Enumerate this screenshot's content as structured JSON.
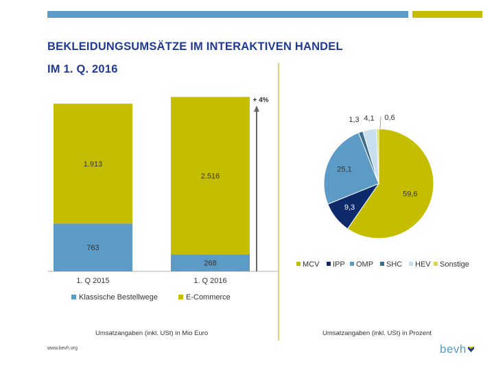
{
  "title": {
    "line1": "BEKLEIDUNGSUMSÄTZE IM INTERAKTIVEN HANDEL",
    "line2": "IM 1. Q. 2016"
  },
  "colors": {
    "accent_blue": "#5b9bc6",
    "accent_olive": "#c4bd00",
    "title_blue": "#1f3a93"
  },
  "chart_data": [
    {
      "type": "bar",
      "stacked": true,
      "categories": [
        "1. Q 2015",
        "1. Q 2016"
      ],
      "series": [
        {
          "name": "Klassische Bestellwege",
          "values": [
            763,
            268
          ],
          "labels": [
            "763",
            "268"
          ],
          "color": "#5b9bc6"
        },
        {
          "name": "E-Commerce",
          "values": [
            1913,
            2516
          ],
          "labels": [
            "1.913",
            "2.516"
          ],
          "color": "#c4bd00"
        }
      ],
      "ylim": [
        0,
        2800
      ],
      "annotation": "+ 4%",
      "legend_position": "bottom",
      "caption": "Umsatzangaben (inkl. USt) in Mio Euro"
    },
    {
      "type": "pie",
      "slices": [
        {
          "name": "MCV",
          "value": 59.6,
          "label": "59,6",
          "color": "#c4bd00"
        },
        {
          "name": "IPP",
          "value": 9.3,
          "label": "9,3",
          "color": "#0e2a6b"
        },
        {
          "name": "OMP",
          "value": 25.1,
          "label": "25,1",
          "color": "#5b9bc6"
        },
        {
          "name": "SHC",
          "value": 1.3,
          "label": "1,3",
          "color": "#3d6f8e"
        },
        {
          "name": "HEV",
          "value": 4.1,
          "label": "4,1",
          "color": "#c9dff0"
        },
        {
          "name": "Sonstige",
          "value": 0.6,
          "label": "0,6",
          "color": "#d9d54e"
        }
      ],
      "legend_position": "bottom",
      "caption": "Umsatzangaben (inkl. USt) in Prozent"
    }
  ],
  "footer": {
    "url": "www.bevh.org",
    "logo": "bevh"
  }
}
